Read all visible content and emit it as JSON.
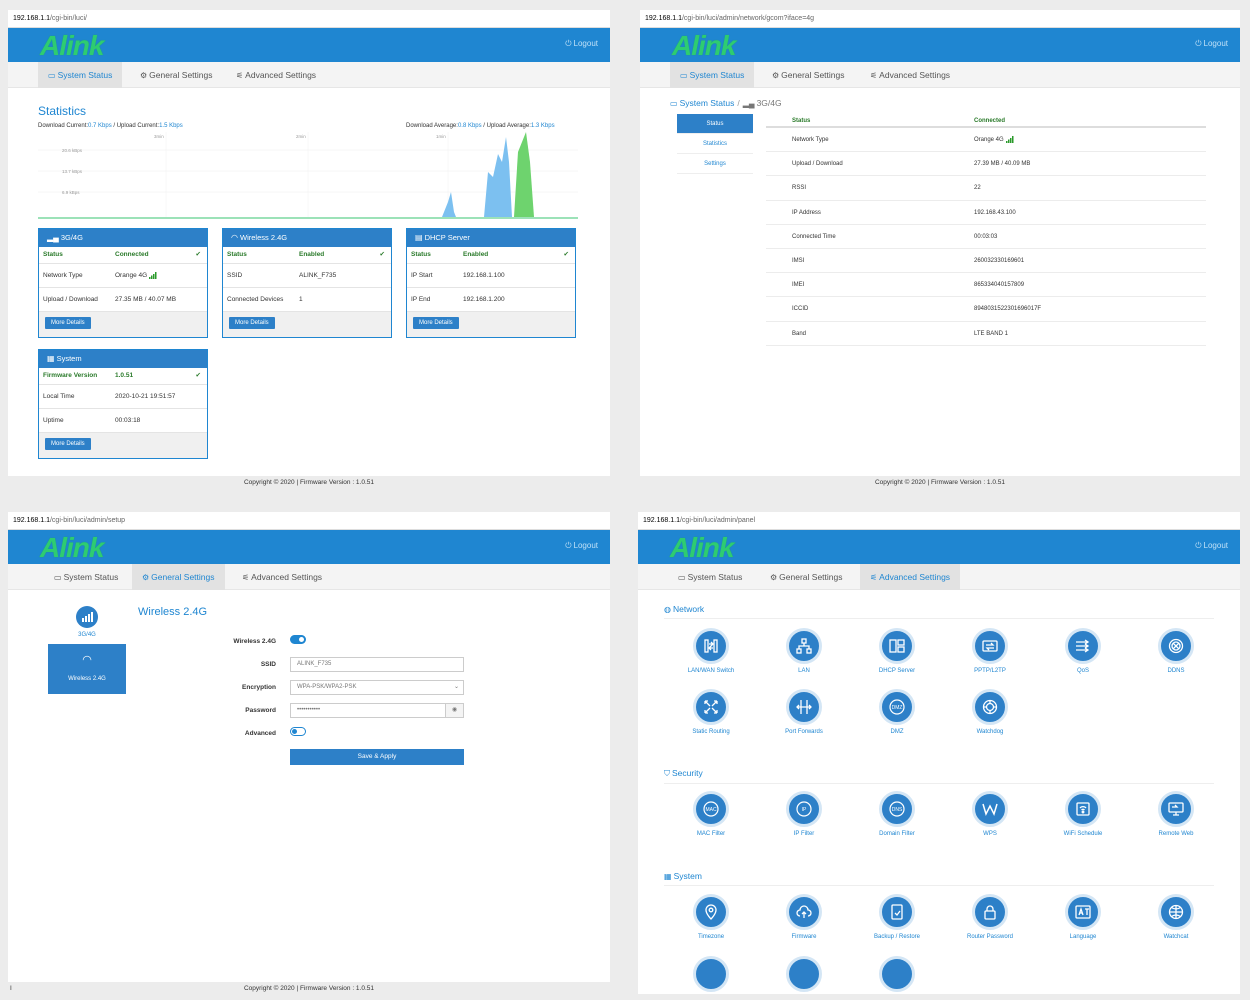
{
  "common": {
    "logo": "Alink",
    "logout": "Logout",
    "tab_status": "System Status",
    "tab_general": "General Settings",
    "tab_advanced": "Advanced Settings",
    "footer": "Copyright © 2020 | Firmware Version : 1.0.51"
  },
  "p1": {
    "url_host": "192.168.1.1",
    "url_path": "/cgi-bin/luci/",
    "stats_title": "Statistics",
    "dl_current_label": "Download Current:",
    "dl_current": "0.7 Kbps",
    "ul_current_label": " / Upload Current:",
    "ul_current": "1.5 Kbps",
    "dl_avg_label": "Download Average:",
    "dl_avg": "0.8 Kbps",
    "ul_avg_label": " / Upload Average:",
    "ul_avg": "1.3 Kbps",
    "chart": {
      "y_labels": [
        "20.6 kBps",
        "13.7 kBps",
        "6.9 kBps"
      ],
      "x_labels": [
        "3min",
        "2min",
        "1min"
      ]
    },
    "cards": {
      "g": {
        "title": "3G/4G",
        "status_k": "Status",
        "status_v": "Connected",
        "r1k": "Network Type",
        "r1v": "Orange 4G",
        "r2k": "Upload / Download",
        "r2v": "27.35 MB / 40.07 MB",
        "btn": "More Details"
      },
      "w": {
        "title": "Wireless 2.4G",
        "status_k": "Status",
        "status_v": "Enabled",
        "r1k": "SSID",
        "r1v": "ALINK_F735",
        "r2k": "Connected Devices",
        "r2v": "1",
        "btn": "More Details"
      },
      "d": {
        "title": "DHCP Server",
        "status_k": "Status",
        "status_v": "Enabled",
        "r1k": "IP Start",
        "r1v": "192.168.1.100",
        "r2k": "IP End",
        "r2v": "192.168.1.200",
        "btn": "More Details"
      },
      "s": {
        "title": "System",
        "status_k": "Firmware Version",
        "status_v": "1.0.51",
        "r1k": "Local Time",
        "r1v": "2020-10-21 19:51:57",
        "r2k": "Uptime",
        "r2v": "00:03:18",
        "btn": "More Details"
      }
    }
  },
  "p2": {
    "url_host": "192.168.1.1",
    "url_path": "/cgi-bin/luci/admin/network/gcom?iface=4g",
    "crumb_root": "System Status",
    "crumb_cur": "3G/4G",
    "side": [
      "Status",
      "Statistics",
      "Settings"
    ],
    "head_k": "Status",
    "head_v": "Connected",
    "rows": [
      [
        "Network Type",
        "Orange 4G"
      ],
      [
        "Upload / Download",
        "27.39 MB / 40.09 MB"
      ],
      [
        "RSSI",
        "22"
      ],
      [
        "IP Address",
        "192.168.43.100"
      ],
      [
        "Connected Time",
        "00:03:03"
      ],
      [
        "IMSI",
        "260032330169601"
      ],
      [
        "IMEI",
        "865334040157809"
      ],
      [
        "ICCID",
        "8948031522301696017F"
      ],
      [
        "Band",
        "LTE BAND 1"
      ]
    ]
  },
  "p3": {
    "url_host": "192.168.1.1",
    "url_path": "/cgi-bin/luci/admin/setup",
    "sel_g": "3G/4G",
    "sel_w": "Wireless 2.4G",
    "title": "Wireless 2.4G",
    "f_wireless": "Wireless 2.4G",
    "f_ssid": "SSID",
    "v_ssid": "ALINK_F735",
    "f_enc": "Encryption",
    "v_enc": "WPA-PSK/WPA2-PSK",
    "f_pass": "Password",
    "v_pass": "•••••••••••",
    "f_adv": "Advanced",
    "save": "Save & Apply",
    "corner": "I"
  },
  "p4": {
    "url_host": "192.168.1.1",
    "url_path": "/cgi-bin/luci/admin/panel",
    "sec_network": "Network",
    "sec_security": "Security",
    "sec_system": "System",
    "network": [
      "LAN/WAN Switch",
      "LAN",
      "DHCP Server",
      "PPTP/L2TP",
      "QoS",
      "DDNS",
      "Static Routing",
      "Port Forwards",
      "DMZ",
      "Watchdog"
    ],
    "security": [
      "MAC Filter",
      "IP Filter",
      "Domain Filter",
      "WPS",
      "WiFi Schedule",
      "Remote Web"
    ],
    "system": [
      "Timezone",
      "Firmware",
      "Backup / Restore",
      "Router Password",
      "Language",
      "Watchcat"
    ],
    "icon_text": {
      "dmz": "DMZ",
      "mac": "MAC",
      "ip": "IP",
      "dns": "DNS"
    }
  }
}
